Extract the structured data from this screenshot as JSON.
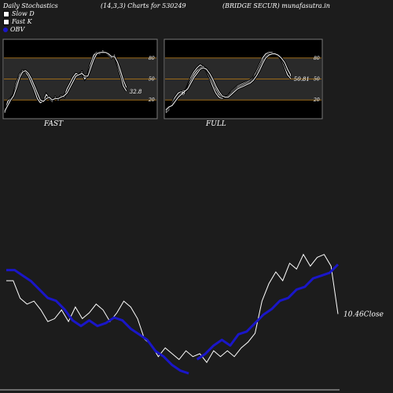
{
  "header": {
    "left": "Daily Stochastics",
    "middle": "(14,3,3) Charts for 530249",
    "right": "(BRIDGE SECUR) munafasutra.in"
  },
  "legend": [
    {
      "label": "Slow  D",
      "color": "#ffffff"
    },
    {
      "label": "Fast K",
      "color": "#ffffff"
    },
    {
      "label": "OBV",
      "color": "#1a16c8"
    }
  ],
  "chart_data": [
    {
      "type": "line",
      "name": "FAST",
      "ylim": [
        0,
        100
      ],
      "levels": [
        20,
        50,
        80
      ],
      "tick_labels": [
        "80",
        "50",
        "20"
      ],
      "last_label": "32.8",
      "series": [
        {
          "values": [
            2,
            18,
            22,
            28,
            44,
            56,
            62,
            60,
            54,
            44,
            34,
            22,
            16,
            18,
            28,
            22,
            18,
            24,
            20,
            26,
            24,
            36,
            44,
            52,
            58,
            56,
            60,
            50,
            56,
            72,
            84,
            88,
            86,
            90,
            88,
            84,
            80,
            84,
            70,
            56,
            40,
            32.8
          ]
        },
        {
          "values": [
            4,
            12,
            20,
            26,
            38,
            52,
            60,
            62,
            58,
            50,
            40,
            30,
            20,
            18,
            22,
            24,
            20,
            22,
            22,
            24,
            26,
            30,
            38,
            46,
            54,
            56,
            58,
            54,
            54,
            66,
            78,
            86,
            88,
            88,
            88,
            86,
            82,
            82,
            74,
            62,
            48,
            38
          ]
        }
      ]
    },
    {
      "type": "line",
      "name": "FULL",
      "ylim": [
        0,
        100
      ],
      "levels": [
        20,
        50,
        80
      ],
      "tick_labels": [
        "80",
        "50",
        "20"
      ],
      "last_label": "50.81",
      "inline_label": "6",
      "series": [
        {
          "values": [
            2,
            6,
            16,
            24,
            30,
            32,
            30,
            40,
            52,
            60,
            66,
            70,
            68,
            62,
            52,
            40,
            30,
            24,
            22,
            24,
            26,
            32,
            36,
            40,
            42,
            44,
            46,
            48,
            52,
            60,
            70,
            80,
            86,
            88,
            88,
            86,
            84,
            78,
            68,
            56,
            50.81
          ]
        },
        {
          "values": [
            4,
            8,
            14,
            20,
            26,
            30,
            32,
            38,
            48,
            56,
            62,
            66,
            68,
            64,
            56,
            46,
            36,
            28,
            24,
            24,
            26,
            30,
            34,
            38,
            40,
            42,
            44,
            46,
            50,
            56,
            66,
            76,
            82,
            86,
            86,
            86,
            84,
            80,
            72,
            62,
            54
          ]
        },
        {
          "values": [
            6,
            10,
            12,
            18,
            24,
            28,
            32,
            36,
            44,
            52,
            58,
            64,
            66,
            64,
            58,
            50,
            40,
            32,
            26,
            24,
            24,
            28,
            32,
            36,
            38,
            40,
            42,
            44,
            48,
            54,
            62,
            72,
            80,
            84,
            86,
            86,
            84,
            80,
            74,
            64,
            56
          ]
        }
      ]
    },
    {
      "type": "line",
      "name": "price-obv",
      "last_label": "10.46Close",
      "series": [
        {
          "name": "Close",
          "values": [
            11.6,
            11.6,
            11.0,
            10.8,
            10.9,
            10.6,
            10.2,
            10.3,
            10.6,
            10.2,
            10.7,
            10.3,
            10.5,
            10.8,
            10.6,
            10.2,
            10.5,
            10.9,
            10.7,
            10.3,
            9.6,
            9.4,
            9.0,
            9.3,
            9.1,
            8.9,
            9.2,
            9.0,
            9.1,
            8.8,
            9.2,
            9.0,
            9.2,
            9.0,
            9.3,
            9.5,
            9.8,
            10.9,
            11.5,
            11.9,
            11.6,
            12.2,
            12.0,
            12.5,
            12.1,
            12.4,
            12.5,
            12.1,
            10.46
          ]
        },
        {
          "name": "OBV",
          "values": [
            44,
            44,
            42,
            40,
            37,
            34,
            33,
            30,
            26,
            24,
            26,
            24,
            25,
            27,
            26,
            23,
            21,
            19,
            15,
            13,
            10,
            8,
            7,
            12,
            14,
            17,
            19,
            17,
            21,
            22,
            25,
            28,
            30,
            33,
            34,
            37,
            38,
            41,
            42,
            43,
            46
          ]
        }
      ]
    }
  ]
}
